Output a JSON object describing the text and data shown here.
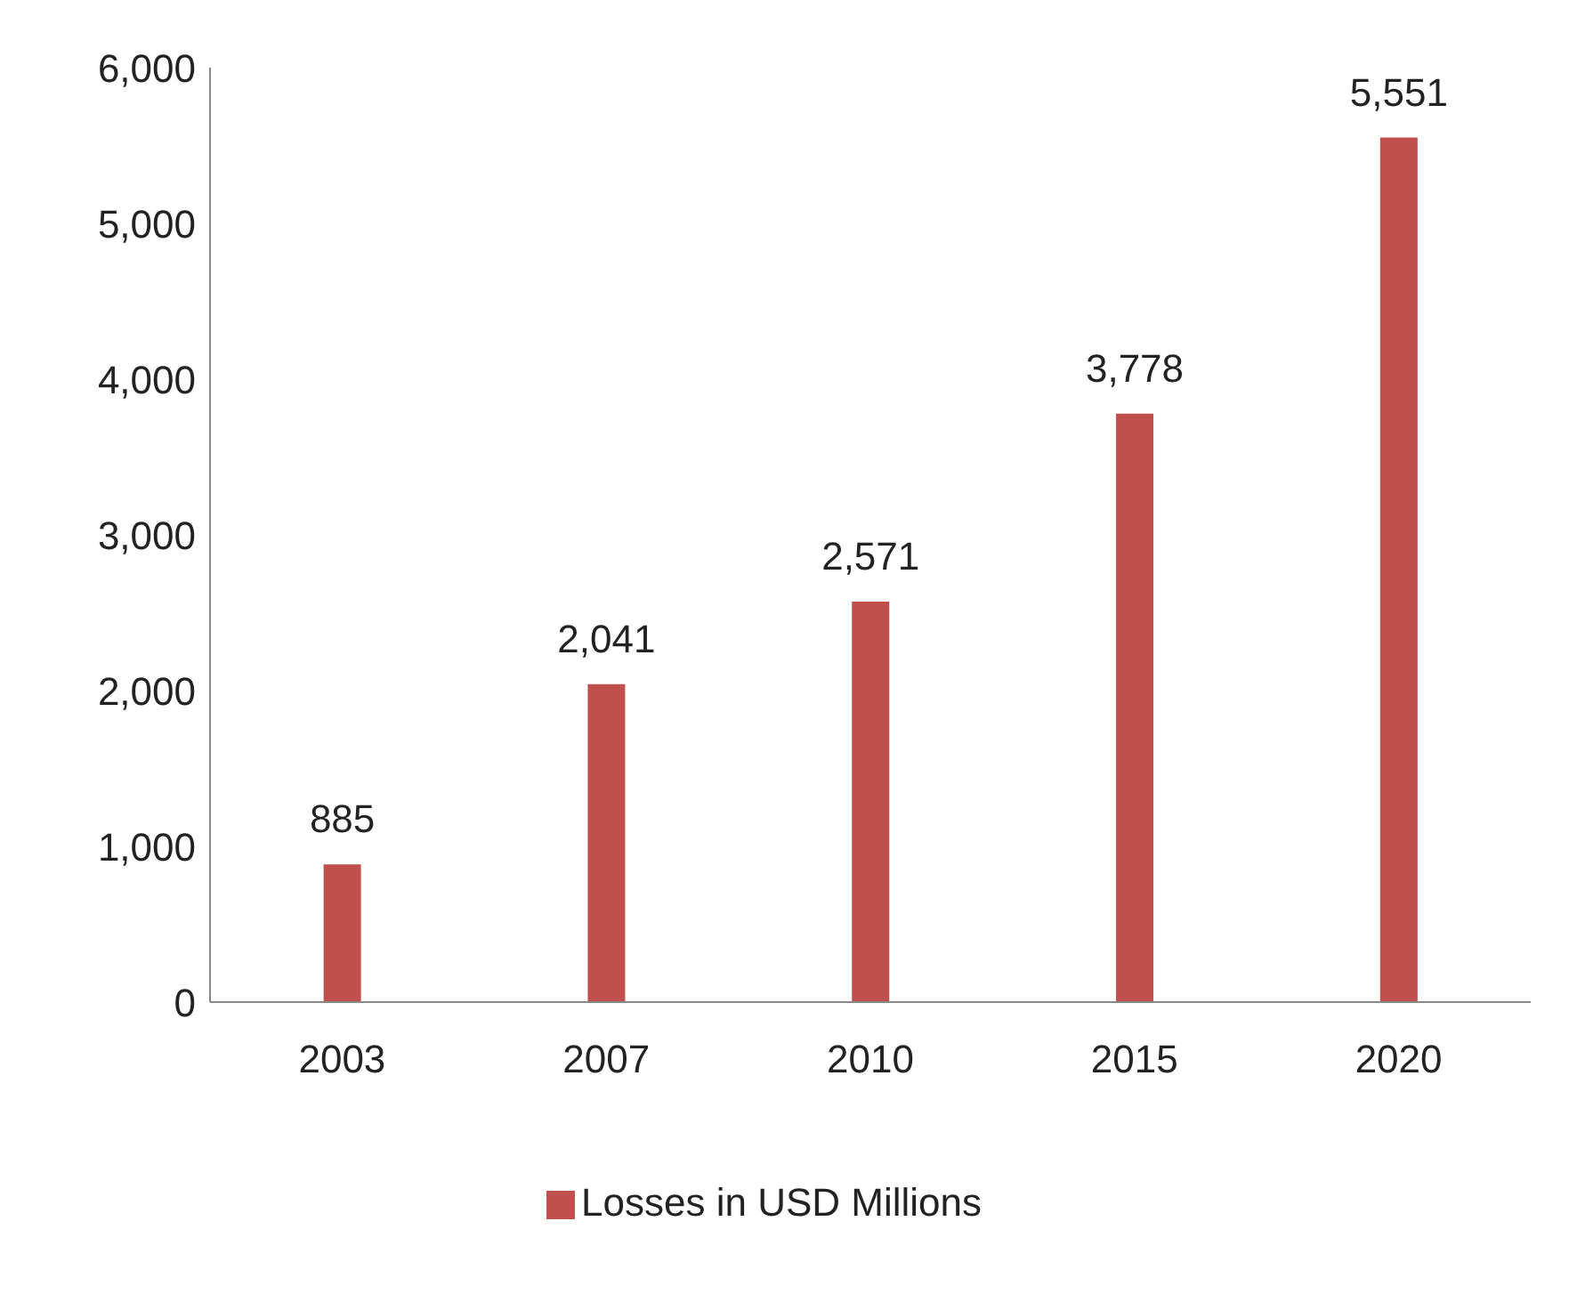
{
  "chart_data": {
    "type": "bar",
    "categories": [
      "2003",
      "2007",
      "2010",
      "2015",
      "2020"
    ],
    "series": [
      {
        "name": "Losses in USD Millions",
        "color": "#c0504d",
        "values": [
          885,
          2041,
          2571,
          3778,
          5551
        ],
        "value_labels": [
          "885",
          "2,041",
          "2,571",
          "3,778",
          "5,551"
        ]
      }
    ],
    "ylim": [
      0,
      6000
    ],
    "yticks": [
      {
        "value": 0,
        "label": "0"
      },
      {
        "value": 1000,
        "label": "1,000"
      },
      {
        "value": 2000,
        "label": "2,000"
      },
      {
        "value": 3000,
        "label": "3,000"
      },
      {
        "value": 4000,
        "label": "4,000"
      },
      {
        "value": 5000,
        "label": "5,000"
      },
      {
        "value": 6000,
        "label": "6,000"
      }
    ],
    "grid": false,
    "legend": "bottom"
  }
}
